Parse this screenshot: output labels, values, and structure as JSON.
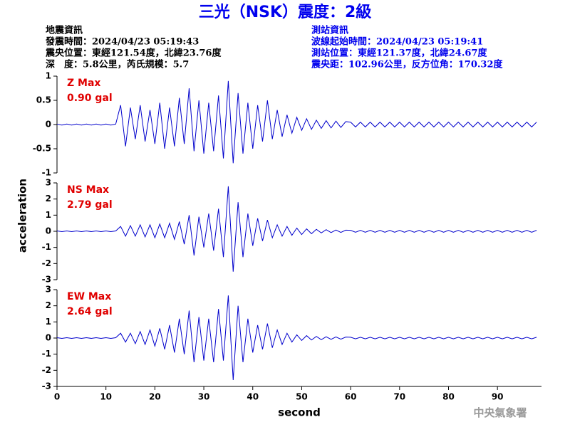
{
  "header": {
    "title": "三光（NSK）震度：2級",
    "left": [
      "地震資訊",
      "發震時間：2024/04/23 05:19:43",
      "震央位置：東經121.54度，北緯23.76度",
      "深　度：5.8公里，芮氏規模：5.7"
    ],
    "right": [
      "測站資訊",
      "波線起始時間：2024/04/23 05:19:41",
      "測站位置：東經121.37度，北緯24.67度",
      "震央距：102.96公里，反方位角：170.32度"
    ]
  },
  "ylabel": "acceleration",
  "footer": "中央氣象署",
  "chart_data": [
    {
      "type": "line",
      "annotations": [
        "Z Max",
        "0.90 gal"
      ],
      "color": "#0000cc",
      "xlim": [
        0,
        99
      ],
      "ylim": [
        -1,
        1
      ],
      "yticks": [
        -1,
        -0.5,
        0,
        0.5,
        1
      ],
      "x": [
        0,
        1,
        2,
        3,
        4,
        5,
        6,
        7,
        8,
        9,
        10,
        11,
        12,
        13,
        14,
        15,
        16,
        17,
        18,
        19,
        20,
        21,
        22,
        23,
        24,
        25,
        26,
        27,
        28,
        29,
        30,
        31,
        32,
        33,
        34,
        35,
        36,
        37,
        38,
        39,
        40,
        41,
        42,
        43,
        44,
        45,
        46,
        47,
        48,
        49,
        50,
        51,
        52,
        53,
        54,
        55,
        56,
        57,
        58,
        59,
        60,
        61,
        62,
        63,
        64,
        65,
        66,
        67,
        68,
        69,
        70,
        71,
        72,
        73,
        74,
        75,
        76,
        77,
        78,
        79,
        80,
        81,
        82,
        83,
        84,
        85,
        86,
        87,
        88,
        89,
        90,
        91,
        92,
        93,
        94,
        95,
        96,
        97,
        98
      ],
      "values": [
        0.01,
        -0.01,
        0.01,
        -0.01,
        0.01,
        -0.01,
        0.01,
        -0.01,
        0.01,
        -0.01,
        0.01,
        -0.01,
        0.01,
        0.4,
        -0.45,
        0.35,
        -0.3,
        0.4,
        -0.35,
        0.3,
        -0.4,
        0.45,
        -0.5,
        0.35,
        -0.45,
        0.55,
        -0.4,
        0.75,
        -0.55,
        0.5,
        -0.6,
        0.45,
        -0.55,
        0.6,
        -0.7,
        0.9,
        -0.8,
        0.65,
        -0.6,
        0.45,
        -0.5,
        0.4,
        -0.35,
        0.5,
        -0.3,
        0.3,
        -0.25,
        0.2,
        -0.18,
        0.15,
        -0.12,
        0.12,
        -0.1,
        0.09,
        -0.08,
        0.08,
        -0.07,
        0.07,
        -0.06,
        0.06,
        0.05,
        -0.05,
        0.05,
        -0.05,
        0.05,
        -0.05,
        0.05,
        -0.05,
        0.05,
        -0.05,
        0.05,
        -0.05,
        0.05,
        -0.05,
        0.05,
        -0.05,
        0.05,
        -0.05,
        0.05,
        -0.05,
        0.05,
        -0.05,
        0.05,
        -0.05,
        0.05,
        -0.05,
        0.05,
        -0.05,
        0.05,
        -0.05,
        0.05,
        -0.05,
        0.05,
        -0.05,
        0.05,
        -0.05,
        0.05,
        -0.05,
        0.05
      ]
    },
    {
      "type": "line",
      "annotations": [
        "NS Max",
        "2.79 gal"
      ],
      "color": "#0000cc",
      "xlim": [
        0,
        99
      ],
      "ylim": [
        -3,
        3
      ],
      "yticks": [
        -3,
        -2,
        -1,
        0,
        1,
        2,
        3
      ],
      "x": [
        0,
        1,
        2,
        3,
        4,
        5,
        6,
        7,
        8,
        9,
        10,
        11,
        12,
        13,
        14,
        15,
        16,
        17,
        18,
        19,
        20,
        21,
        22,
        23,
        24,
        25,
        26,
        27,
        28,
        29,
        30,
        31,
        32,
        33,
        34,
        35,
        36,
        37,
        38,
        39,
        40,
        41,
        42,
        43,
        44,
        45,
        46,
        47,
        48,
        49,
        50,
        51,
        52,
        53,
        54,
        55,
        56,
        57,
        58,
        59,
        60,
        61,
        62,
        63,
        64,
        65,
        66,
        67,
        68,
        69,
        70,
        71,
        72,
        73,
        74,
        75,
        76,
        77,
        78,
        79,
        80,
        81,
        82,
        83,
        84,
        85,
        86,
        87,
        88,
        89,
        90,
        91,
        92,
        93,
        94,
        95,
        96,
        97,
        98
      ],
      "values": [
        0.02,
        -0.02,
        0.02,
        -0.02,
        0.02,
        -0.02,
        0.02,
        -0.02,
        0.02,
        -0.02,
        0.02,
        -0.02,
        0.02,
        0.3,
        -0.3,
        0.35,
        -0.3,
        0.4,
        -0.35,
        0.4,
        -0.4,
        0.45,
        -0.4,
        0.5,
        -0.5,
        0.6,
        -0.8,
        1.0,
        -1.5,
        0.9,
        -1.0,
        1.1,
        -1.2,
        1.4,
        -1.6,
        2.79,
        -2.5,
        1.8,
        -1.6,
        1.1,
        -0.9,
        0.8,
        -0.6,
        0.7,
        -0.4,
        0.4,
        -0.3,
        0.3,
        -0.25,
        0.2,
        -0.2,
        0.15,
        -0.15,
        0.12,
        -0.1,
        0.1,
        -0.08,
        0.08,
        -0.07,
        0.07,
        0.06,
        -0.06,
        0.06,
        -0.06,
        0.06,
        -0.06,
        0.06,
        -0.06,
        0.06,
        -0.06,
        0.06,
        -0.06,
        0.06,
        -0.06,
        0.06,
        -0.06,
        0.06,
        -0.06,
        0.06,
        -0.06,
        0.06,
        -0.06,
        0.06,
        -0.06,
        0.06,
        -0.06,
        0.06,
        -0.06,
        0.06,
        -0.06,
        0.06,
        -0.06,
        0.06,
        -0.06,
        0.06,
        -0.06,
        0.06,
        -0.06,
        0.06
      ]
    },
    {
      "type": "line",
      "annotations": [
        "EW Max",
        "2.64 gal"
      ],
      "color": "#0000cc",
      "xlim": [
        0,
        99
      ],
      "ylim": [
        -3,
        3
      ],
      "yticks": [
        -3,
        -2,
        -1,
        0,
        1,
        2,
        3
      ],
      "xticks": [
        0,
        10,
        20,
        30,
        40,
        50,
        60,
        70,
        80,
        90
      ],
      "xlabel": "second",
      "x": [
        0,
        1,
        2,
        3,
        4,
        5,
        6,
        7,
        8,
        9,
        10,
        11,
        12,
        13,
        14,
        15,
        16,
        17,
        18,
        19,
        20,
        21,
        22,
        23,
        24,
        25,
        26,
        27,
        28,
        29,
        30,
        31,
        32,
        33,
        34,
        35,
        36,
        37,
        38,
        39,
        40,
        41,
        42,
        43,
        44,
        45,
        46,
        47,
        48,
        49,
        50,
        51,
        52,
        53,
        54,
        55,
        56,
        57,
        58,
        59,
        60,
        61,
        62,
        63,
        64,
        65,
        66,
        67,
        68,
        69,
        70,
        71,
        72,
        73,
        74,
        75,
        76,
        77,
        78,
        79,
        80,
        81,
        82,
        83,
        84,
        85,
        86,
        87,
        88,
        89,
        90,
        91,
        92,
        93,
        94,
        95,
        96,
        97,
        98
      ],
      "values": [
        0.02,
        -0.02,
        0.02,
        -0.02,
        0.02,
        -0.02,
        0.02,
        -0.02,
        0.02,
        -0.02,
        0.02,
        -0.02,
        0.02,
        0.3,
        -0.25,
        0.3,
        -0.35,
        0.4,
        -0.4,
        0.5,
        -0.5,
        0.6,
        -0.7,
        0.8,
        -0.9,
        1.2,
        -1.0,
        1.7,
        -1.5,
        1.3,
        -1.4,
        1.2,
        -1.5,
        1.8,
        -1.4,
        2.64,
        -2.6,
        2.0,
        -1.5,
        1.2,
        -0.9,
        0.8,
        -0.7,
        0.9,
        -0.6,
        0.5,
        -0.4,
        0.3,
        -0.25,
        0.2,
        -0.15,
        0.15,
        -0.12,
        0.1,
        -0.1,
        0.08,
        -0.08,
        0.07,
        -0.07,
        0.06,
        0.05,
        -0.05,
        0.05,
        -0.05,
        0.05,
        -0.05,
        0.05,
        -0.05,
        0.05,
        -0.05,
        0.05,
        -0.05,
        0.05,
        -0.05,
        0.05,
        -0.05,
        0.05,
        -0.05,
        0.05,
        -0.05,
        0.05,
        -0.05,
        0.05,
        -0.05,
        0.05,
        -0.05,
        0.05,
        -0.05,
        0.05,
        -0.05,
        0.05,
        -0.05,
        0.05,
        -0.05,
        0.05,
        -0.05,
        0.05,
        -0.05,
        0.05
      ]
    }
  ]
}
